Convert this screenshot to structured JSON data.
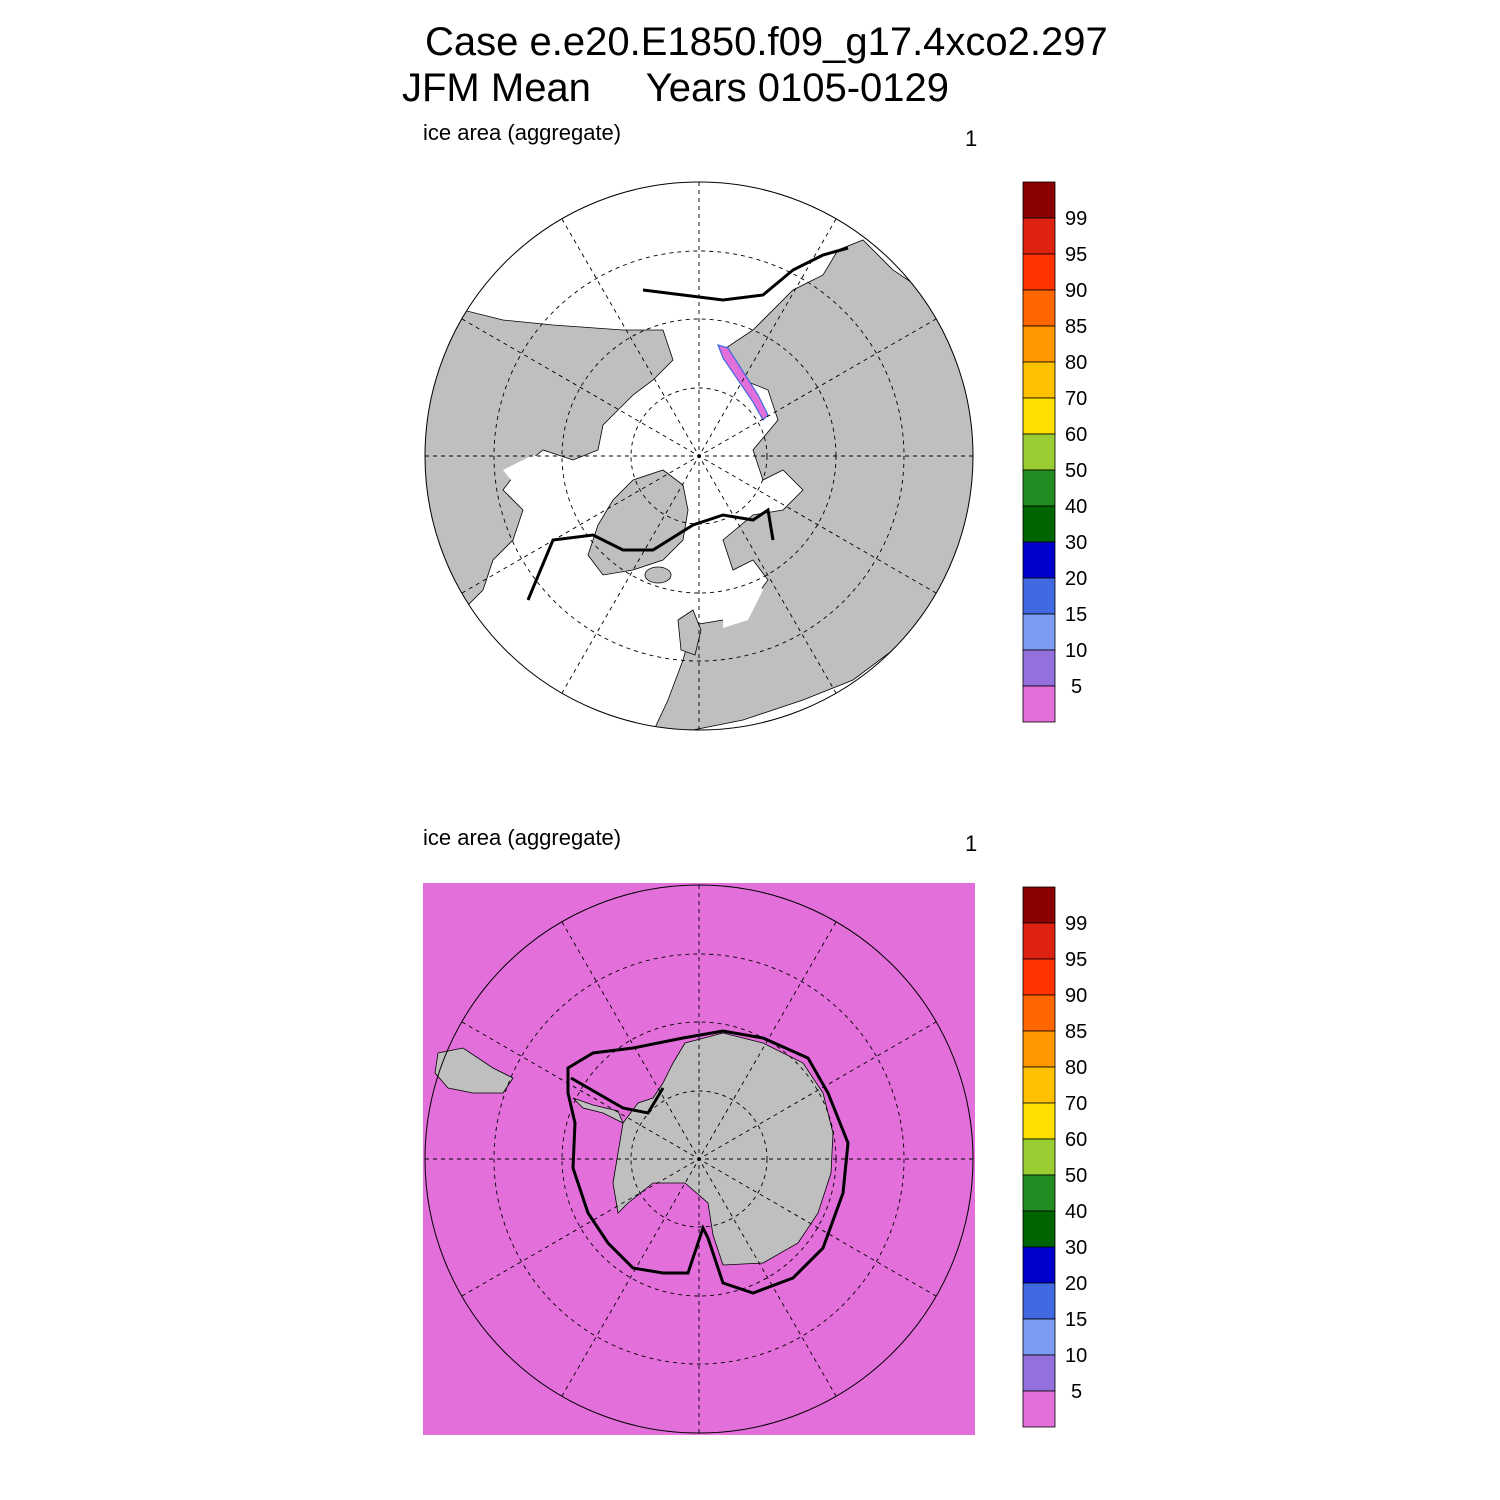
{
  "title": {
    "line1": "Case e.e20.E1850.f09_g17.4xco2.297",
    "line2": "JFM Mean     Years 0105-0129"
  },
  "panels": [
    {
      "label": "ice area  (aggregate)",
      "number": "1"
    },
    {
      "label": "ice area  (aggregate)",
      "number": "1"
    }
  ],
  "colorbar": {
    "levels": [
      "5",
      "10",
      "15",
      "20",
      "30",
      "40",
      "50",
      "60",
      "70",
      "80",
      "85",
      "90",
      "95",
      "99"
    ],
    "colors": [
      "#e36fdb",
      "#9370db",
      "#7b9cf0",
      "#4169e1",
      "#0000cd",
      "#006400",
      "#228b22",
      "#9acd32",
      "#ffe000",
      "#ffc000",
      "#ff9800",
      "#ff6600",
      "#ff3300",
      "#dd2211",
      "#8b0000"
    ]
  },
  "colors": {
    "land": "#bfbfbf",
    "ocean_background_south": "#e36fdb",
    "ice_edge": "#000000"
  }
}
